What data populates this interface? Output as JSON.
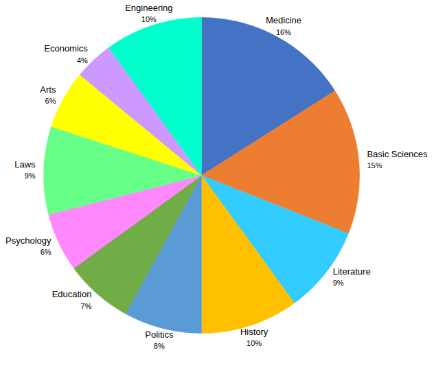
{
  "chart_data": {
    "type": "pie",
    "categories": [
      "Medicine",
      "Basic Sciences",
      "Literature",
      "History",
      "Politics",
      "Education",
      "Psychology",
      "Laws",
      "Arts",
      "Economics",
      "Engineering"
    ],
    "values": [
      16,
      15,
      9,
      10,
      8,
      7,
      6,
      9,
      6,
      4,
      10
    ],
    "value_labels": [
      "16%",
      "15%",
      "9%",
      "10%",
      "8%",
      "7%",
      "6%",
      "9%",
      "6%",
      "4%",
      "10%"
    ],
    "colors": [
      "#4472c4",
      "#ed7d31",
      "#33ccff",
      "#ffc000",
      "#5b9bd5",
      "#70ad47",
      "#ff88ff",
      "#66ff88",
      "#ffff00",
      "#cc99ff",
      "#00ffcc"
    ],
    "data_labels": true
  }
}
